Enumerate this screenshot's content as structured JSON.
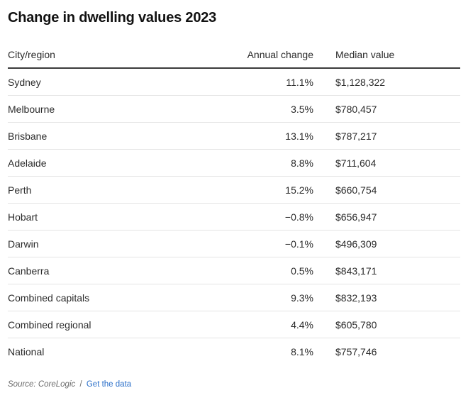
{
  "title": "Change in dwelling values 2023",
  "table": {
    "headers": [
      "City/region",
      "Annual change",
      "Median value"
    ],
    "rows": [
      {
        "city": "Sydney",
        "change": "11.1%",
        "median": "$1,128,322"
      },
      {
        "city": "Melbourne",
        "change": "3.5%",
        "median": "$780,457"
      },
      {
        "city": "Brisbane",
        "change": "13.1%",
        "median": "$787,217"
      },
      {
        "city": "Adelaide",
        "change": "8.8%",
        "median": "$711,604"
      },
      {
        "city": "Perth",
        "change": "15.2%",
        "median": "$660,754"
      },
      {
        "city": "Hobart",
        "change": "−0.8%",
        "median": "$656,947"
      },
      {
        "city": "Darwin",
        "change": "−0.1%",
        "median": "$496,309"
      },
      {
        "city": "Canberra",
        "change": "0.5%",
        "median": "$843,171"
      },
      {
        "city": "Combined capitals",
        "change": "9.3%",
        "median": "$832,193"
      },
      {
        "city": "Combined regional",
        "change": "4.4%",
        "median": "$605,780"
      },
      {
        "city": "National",
        "change": "8.1%",
        "median": "$757,746"
      }
    ]
  },
  "footer": {
    "source": "Source: CoreLogic",
    "separator": "/",
    "link_label": "Get the data"
  },
  "colors": {
    "link": "#2a6fc9",
    "header_rule": "#3a3a3a",
    "row_rule": "#e4e4e4"
  }
}
